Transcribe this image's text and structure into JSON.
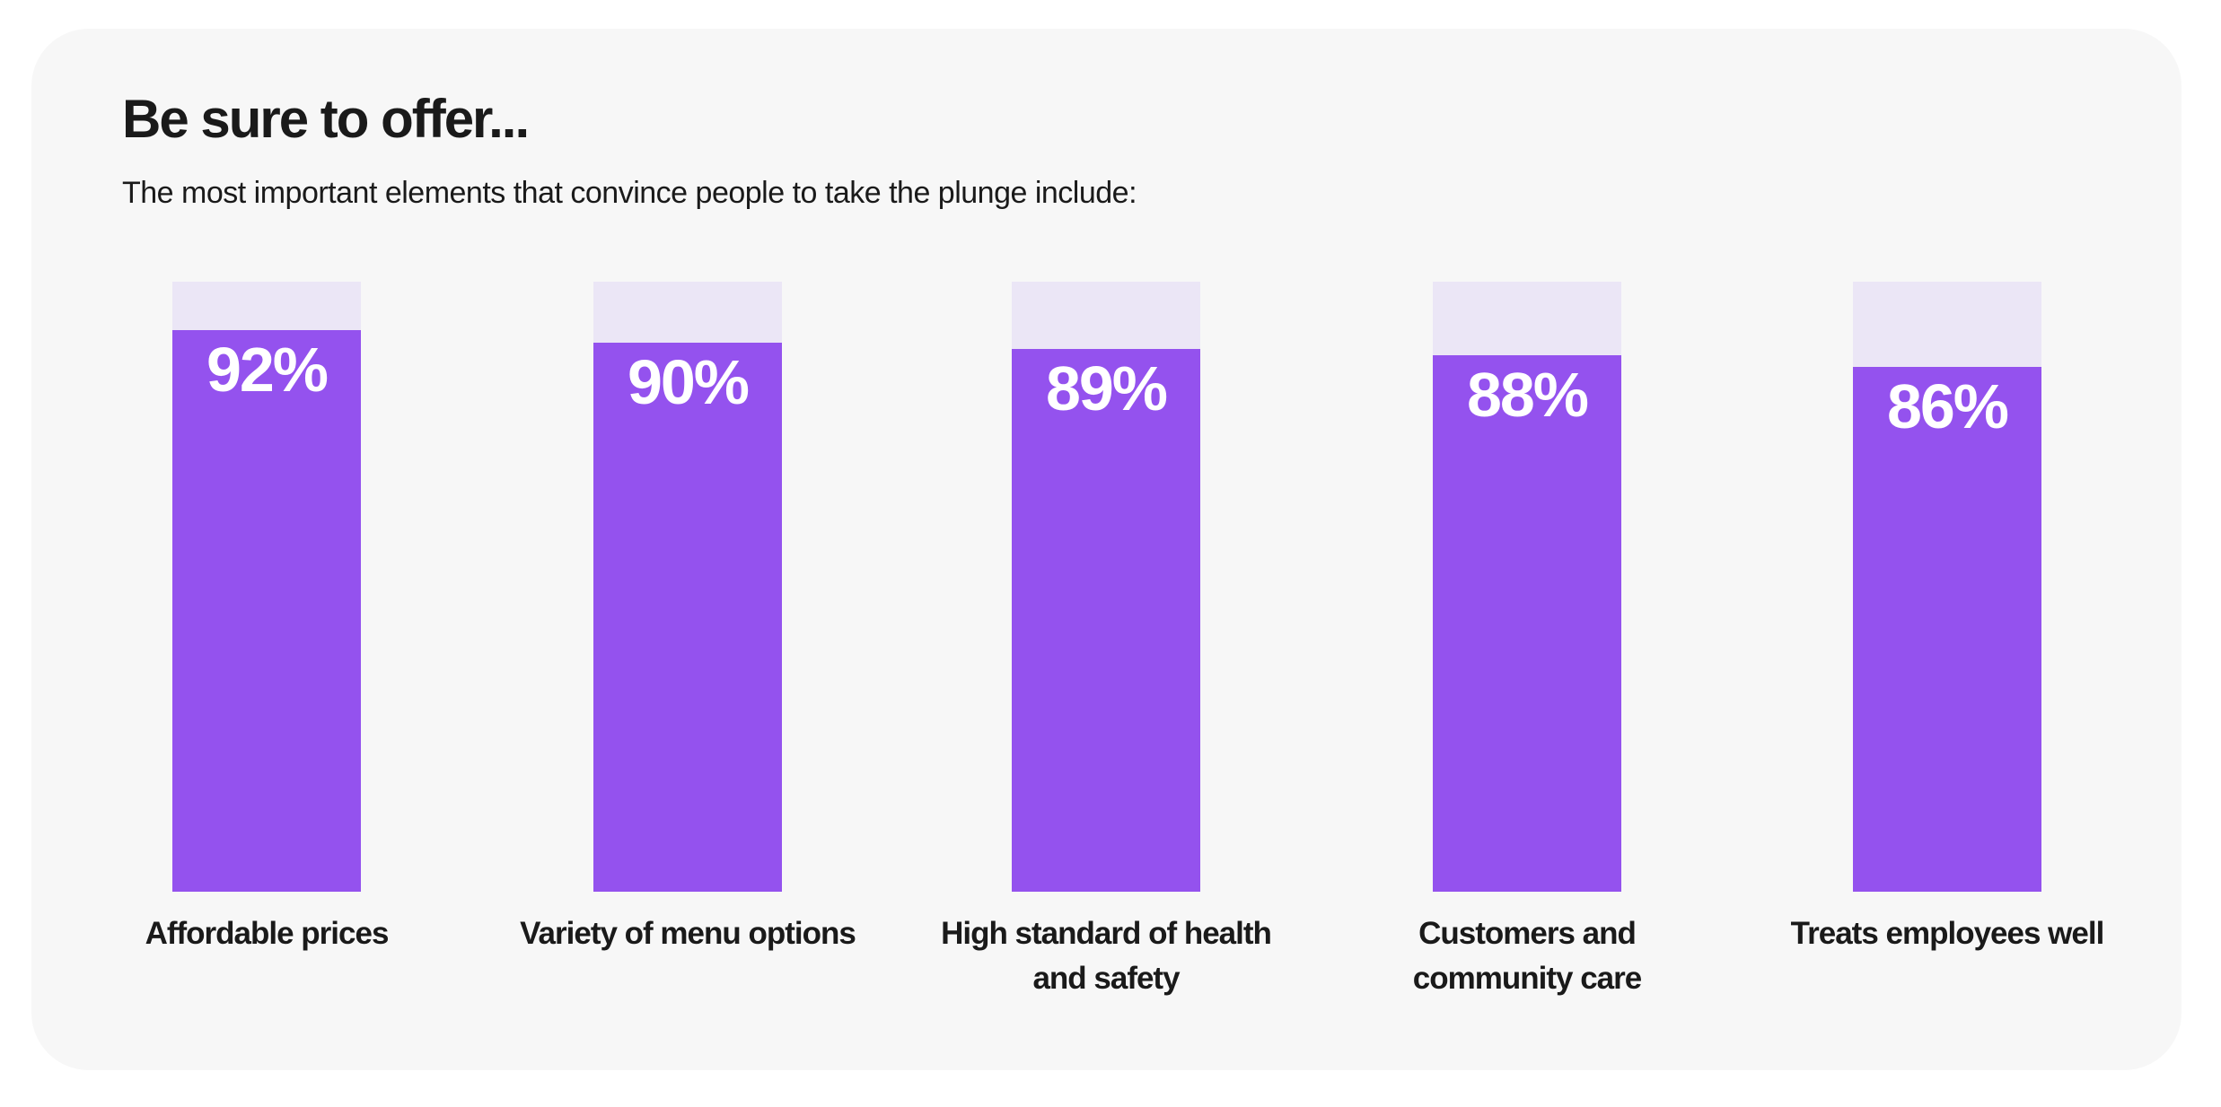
{
  "title": "Be sure to offer...",
  "subtitle": "The most important elements that convince people to take the plunge include:",
  "colors": {
    "bar": "#9452ee",
    "track": "#ebe6f6",
    "card": "#f7f7f7",
    "text": "#1a1a1a",
    "label": "#ffffff"
  },
  "chart_data": {
    "type": "bar",
    "title": "Be sure to offer...",
    "subtitle": "The most important elements that convince people to take the plunge include:",
    "categories": [
      "Affordable prices",
      "Variety of menu options",
      "High standard of health and safety",
      "Customers and community care",
      "Treats employees well"
    ],
    "values": [
      92,
      90,
      89,
      88,
      86
    ],
    "value_labels": [
      "92%",
      "90%",
      "89%",
      "88%",
      "86%"
    ],
    "unit": "%",
    "ylim": [
      0,
      100
    ],
    "grid": false,
    "legend": "none"
  }
}
